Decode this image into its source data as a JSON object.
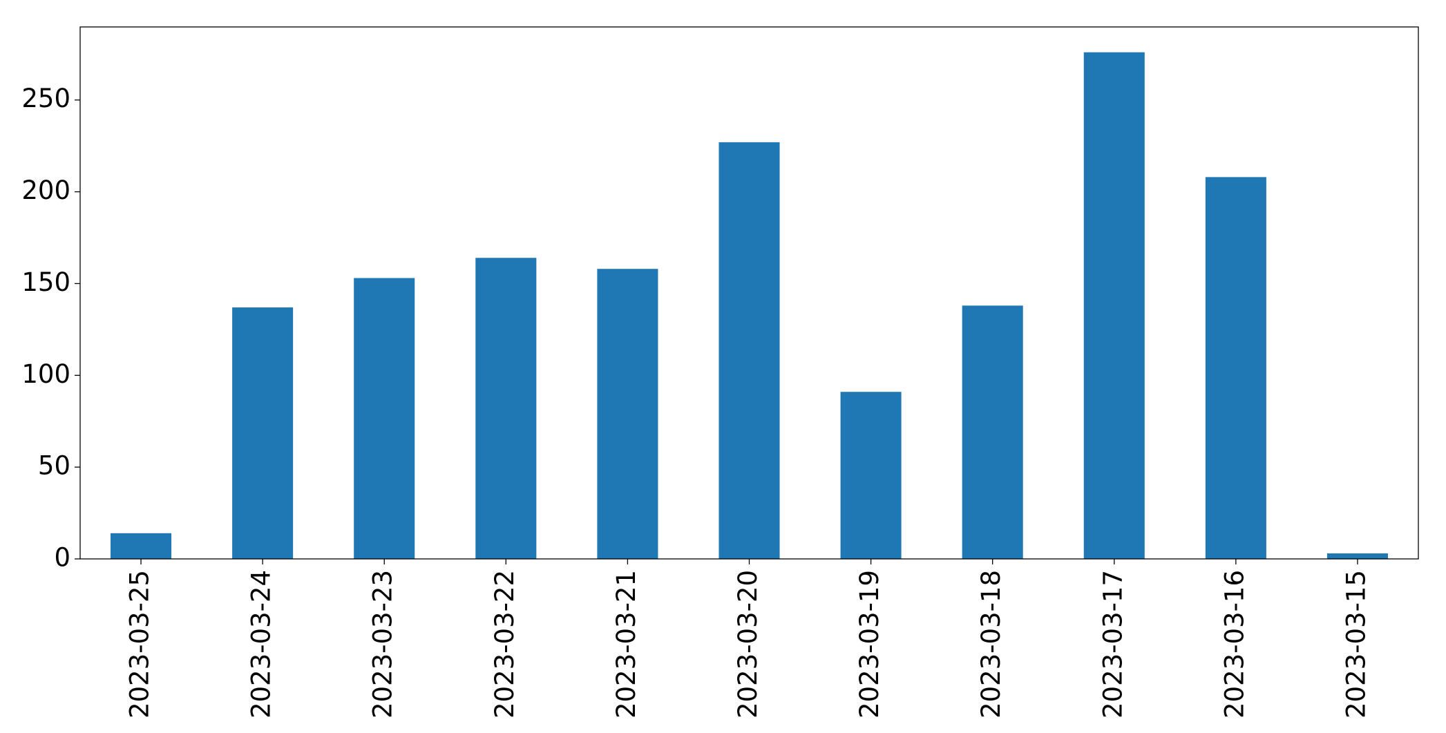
{
  "chart_data": {
    "type": "bar",
    "categories": [
      "2023-03-25",
      "2023-03-24",
      "2023-03-23",
      "2023-03-22",
      "2023-03-21",
      "2023-03-20",
      "2023-03-19",
      "2023-03-18",
      "2023-03-17",
      "2023-03-16",
      "2023-03-15"
    ],
    "values": [
      14,
      137,
      153,
      164,
      158,
      227,
      91,
      138,
      276,
      208,
      3
    ],
    "color": "#1f77b4",
    "ylim": [
      0,
      289.8
    ],
    "yticks": [
      0,
      50,
      100,
      150,
      200,
      250
    ],
    "grid": false
  }
}
